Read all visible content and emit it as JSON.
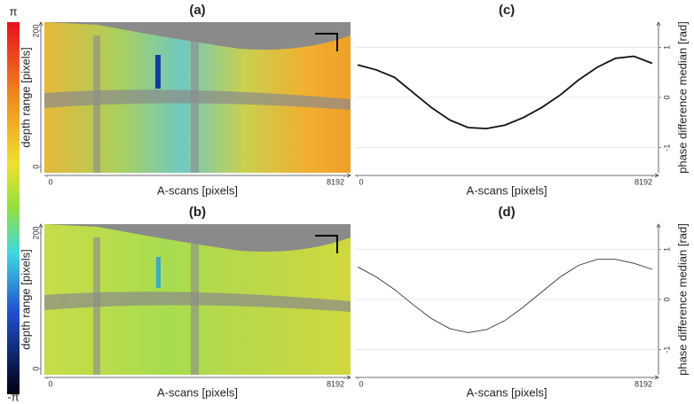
{
  "colorbar": {
    "max_label": "π",
    "min_label": "-π"
  },
  "chart_data": [
    {
      "type": "image",
      "title": "(a)",
      "xlabel": "A-scans [pixels]",
      "ylabel": "depth range [pixels]",
      "xlim": [
        0,
        8192
      ],
      "xticks": [
        0,
        8192
      ],
      "ylim": [
        -9,
        213
      ],
      "yticks": [
        0,
        200
      ]
    },
    {
      "type": "image",
      "title": "(b)",
      "xlabel": "A-scans [pixels]",
      "ylabel": "depth range [pixels]",
      "xlim": [
        0,
        8192
      ],
      "xticks": [
        0,
        8192
      ],
      "ylim": [
        -9,
        213
      ],
      "yticks": [
        0,
        200
      ]
    },
    {
      "type": "line",
      "title": "(c)",
      "xlabel": "A-scans [pixels]",
      "ylabel": "phase difference median [rad]",
      "xlim": [
        0,
        8192
      ],
      "xticks": [
        0,
        8192
      ],
      "ylim": [
        -1.5,
        1.5
      ],
      "yticks": [
        -1,
        0,
        1
      ],
      "grid": true,
      "color": "#111111",
      "x": [
        0,
        512,
        1024,
        1536,
        2048,
        2560,
        3072,
        3584,
        4096,
        4608,
        5120,
        5632,
        6144,
        6656,
        7168,
        7680,
        8192
      ],
      "values": [
        0.65,
        0.55,
        0.4,
        0.1,
        -0.2,
        -0.45,
        -0.6,
        -0.62,
        -0.55,
        -0.4,
        -0.2,
        0.05,
        0.35,
        0.6,
        0.78,
        0.82,
        0.68
      ]
    },
    {
      "type": "line",
      "title": "(d)",
      "xlabel": "A-scans [pixels]",
      "ylabel": "phase difference median [rad]",
      "xlim": [
        0,
        8192
      ],
      "xticks": [
        0,
        8192
      ],
      "ylim": [
        -1.5,
        1.5
      ],
      "yticks": [
        -1,
        0,
        1
      ],
      "grid": true,
      "color": "#333333",
      "x": [
        0,
        512,
        1024,
        1536,
        2048,
        2560,
        3072,
        3584,
        4096,
        4608,
        5120,
        5632,
        6144,
        6656,
        7168,
        7680,
        8192
      ],
      "values": [
        0.65,
        0.45,
        0.2,
        -0.1,
        -0.38,
        -0.58,
        -0.66,
        -0.6,
        -0.42,
        -0.15,
        0.15,
        0.45,
        0.68,
        0.8,
        0.8,
        0.72,
        0.6
      ]
    }
  ]
}
